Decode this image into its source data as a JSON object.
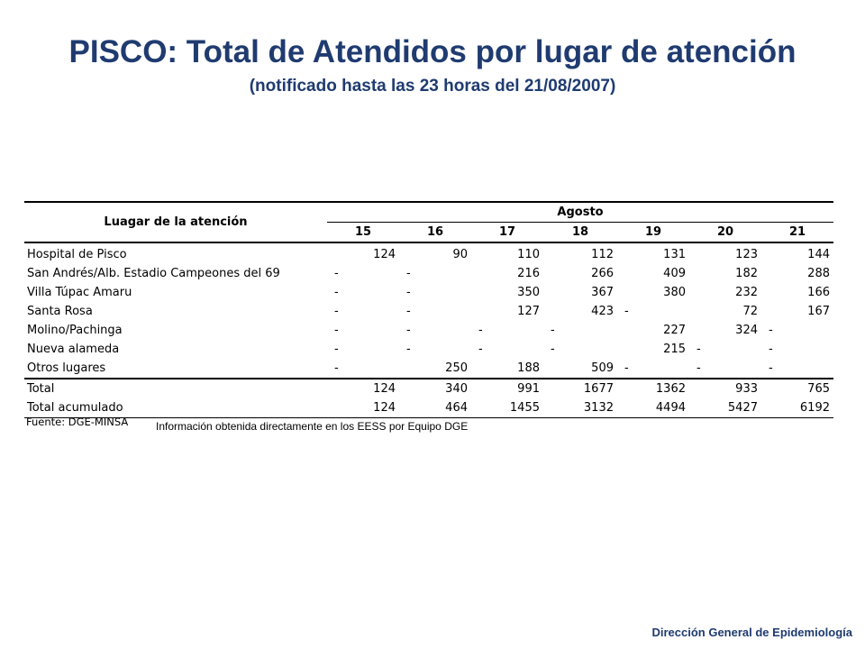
{
  "title": "PISCO: Total de Atendidos por lugar de atención",
  "subtitle": "(notificado hasta las 23 horas del 21/08/2007)",
  "table": {
    "row_header": "Luagar de la atención",
    "group_header": "Agosto",
    "days": [
      "15",
      "16",
      "17",
      "18",
      "19",
      "20",
      "21"
    ],
    "rows": [
      {
        "place": "Hospital de Pisco",
        "values": [
          "124",
          "90",
          "110",
          "112",
          "131",
          "123",
          "144"
        ]
      },
      {
        "place": "San Andrés/Alb. Estadio Campeones del 69",
        "values": [
          "-",
          "-",
          "216",
          "266",
          "409",
          "182",
          "288"
        ]
      },
      {
        "place": "Villa Túpac Amaru",
        "values": [
          "-",
          "-",
          "350",
          "367",
          "380",
          "232",
          "166"
        ]
      },
      {
        "place": "Santa Rosa",
        "values": [
          "-",
          "-",
          "127",
          "423",
          "-",
          "72",
          "167"
        ]
      },
      {
        "place": "Molino/Pachinga",
        "values": [
          "-",
          "-",
          "-",
          "-",
          "227",
          "324",
          "-"
        ]
      },
      {
        "place": "Nueva alameda",
        "values": [
          "-",
          "-",
          "-",
          "-",
          "215",
          "-",
          "-"
        ]
      },
      {
        "place": "Otros lugares",
        "values": [
          "-",
          "250",
          "188",
          "509",
          "-",
          "-",
          "-"
        ]
      }
    ],
    "totals": [
      {
        "place": "Total",
        "values": [
          "124",
          "340",
          "991",
          "1677",
          "1362",
          "933",
          "765"
        ]
      },
      {
        "place": "Total acumulado",
        "values": [
          "124",
          "464",
          "1455",
          "3132",
          "4494",
          "5427",
          "6192"
        ]
      }
    ]
  },
  "source": "Fuente: DGE-MINSA",
  "note": "Información obtenida directamente en los EESS por Equipo DGE",
  "footer": "Dirección General de Epidemiología",
  "colors": {
    "title": "#1f3b70"
  }
}
